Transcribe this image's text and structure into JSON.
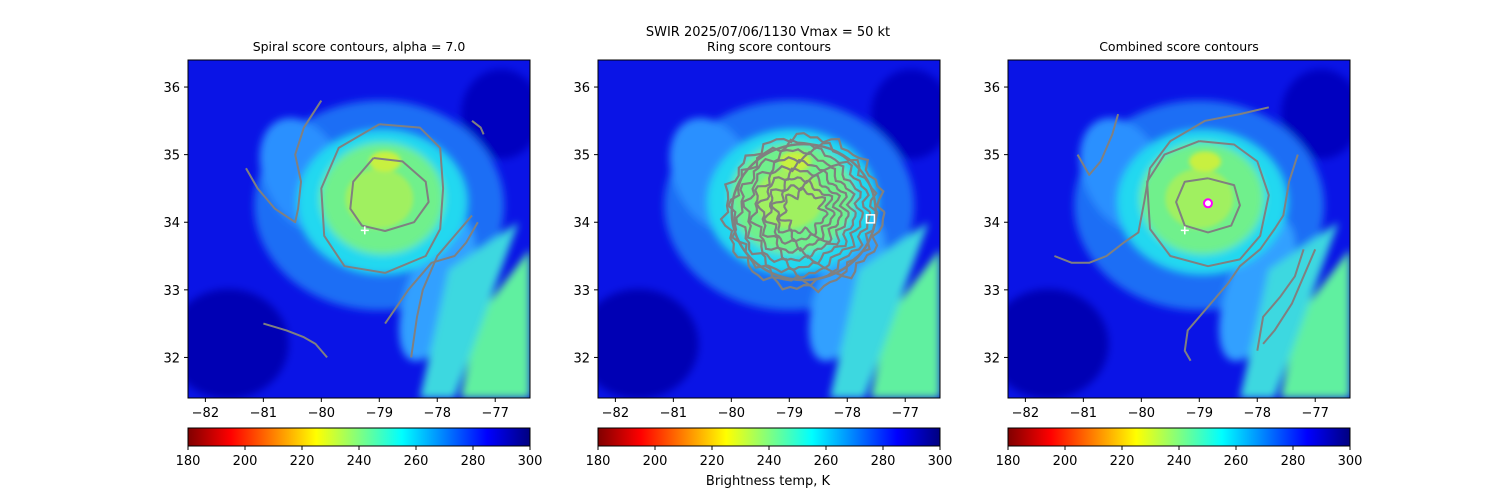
{
  "suptitle": {
    "line1": "SWIR  2025/07/06/1130    Vmax = 50 kt",
    "colorbar_label": "Brightness temp, K"
  },
  "colors": {
    "contour": "#808080",
    "marker_plus": "#ffffff",
    "marker_square": "#ffffff",
    "marker_circle_edge": "#ff00ff",
    "marker_circle_face": "#ffffff"
  },
  "colormap": {
    "name": "jet_r",
    "stops": [
      "#800000",
      "#ff0000",
      "#ff8000",
      "#ffff00",
      "#80ff80",
      "#00ffff",
      "#0080ff",
      "#0000ff",
      "#000080"
    ]
  },
  "chart_data": [
    {
      "type": "heatmap",
      "title": "Spiral score contours, alpha =  7.0",
      "xlabel": "",
      "ylabel": "",
      "xlim": [
        -82.3,
        -76.4
      ],
      "ylim": [
        31.4,
        36.4
      ],
      "xticks": [
        -82,
        -81,
        -80,
        -79,
        -78,
        -77
      ],
      "yticks": [
        32,
        33,
        34,
        35,
        36
      ],
      "colorbar": {
        "min": 180,
        "max": 300,
        "ticks": [
          180,
          200,
          220,
          240,
          260,
          280,
          300
        ]
      },
      "markers": [
        {
          "shape": "plus",
          "x": -79.25,
          "y": 33.88
        }
      ],
      "contours": [
        [
          [
            -79.1,
            34.95
          ],
          [
            -78.6,
            34.9
          ],
          [
            -78.2,
            34.6
          ],
          [
            -78.15,
            34.3
          ],
          [
            -78.4,
            34.0
          ],
          [
            -78.9,
            33.87
          ],
          [
            -79.3,
            33.95
          ],
          [
            -79.5,
            34.2
          ],
          [
            -79.45,
            34.6
          ],
          [
            -79.1,
            34.95
          ]
        ],
        [
          [
            -79.0,
            35.45
          ],
          [
            -78.3,
            35.4
          ],
          [
            -77.95,
            35.1
          ],
          [
            -77.9,
            34.5
          ],
          [
            -77.95,
            33.9
          ],
          [
            -78.2,
            33.5
          ],
          [
            -78.9,
            33.25
          ],
          [
            -79.6,
            33.35
          ],
          [
            -79.95,
            33.8
          ],
          [
            -80.0,
            34.5
          ],
          [
            -79.7,
            35.1
          ],
          [
            -79.0,
            35.45
          ]
        ],
        [
          [
            -81.3,
            34.8
          ],
          [
            -81.1,
            34.5
          ],
          [
            -80.8,
            34.2
          ],
          [
            -80.45,
            34.0
          ],
          [
            -80.4,
            34.2
          ],
          [
            -80.35,
            34.6
          ],
          [
            -80.45,
            35.0
          ],
          [
            -80.3,
            35.4
          ],
          [
            -80.0,
            35.8
          ]
        ],
        [
          [
            -77.4,
            34.1
          ],
          [
            -77.6,
            33.9
          ],
          [
            -77.8,
            33.7
          ],
          [
            -78.0,
            33.5
          ],
          [
            -78.25,
            33.0
          ],
          [
            -78.35,
            32.6
          ],
          [
            -78.45,
            32.0
          ]
        ],
        [
          [
            -77.3,
            34.0
          ],
          [
            -77.5,
            33.7
          ],
          [
            -77.7,
            33.5
          ],
          [
            -78.1,
            33.4
          ],
          [
            -78.5,
            33.0
          ],
          [
            -78.9,
            32.5
          ]
        ],
        [
          [
            -81.0,
            32.5
          ],
          [
            -80.6,
            32.4
          ],
          [
            -80.3,
            32.3
          ],
          [
            -80.1,
            32.2
          ],
          [
            -79.9,
            32.0
          ]
        ],
        [
          [
            -77.4,
            35.5
          ],
          [
            -77.25,
            35.4
          ],
          [
            -77.2,
            35.3
          ]
        ]
      ]
    },
    {
      "type": "heatmap",
      "title": "Ring score contours",
      "xlabel": "",
      "ylabel": "",
      "xlim": [
        -82.3,
        -76.4
      ],
      "ylim": [
        31.4,
        36.4
      ],
      "xticks": [
        -82,
        -81,
        -80,
        -79,
        -78,
        -77
      ],
      "yticks": [
        32,
        33,
        34,
        35,
        36
      ],
      "colorbar": {
        "min": 180,
        "max": 300,
        "ticks": [
          180,
          200,
          220,
          240,
          260,
          280,
          300
        ]
      },
      "markers": [
        {
          "shape": "square",
          "x": -77.6,
          "y": 34.05
        }
      ],
      "contours": []
    },
    {
      "type": "heatmap",
      "title": "Combined score contours",
      "xlabel": "",
      "ylabel": "",
      "xlim": [
        -82.3,
        -76.4
      ],
      "ylim": [
        31.4,
        36.4
      ],
      "xticks": [
        -82,
        -81,
        -80,
        -79,
        -78,
        -77
      ],
      "yticks": [
        32,
        33,
        34,
        35,
        36
      ],
      "colorbar": {
        "min": 180,
        "max": 300,
        "ticks": [
          180,
          200,
          220,
          240,
          260,
          280,
          300
        ]
      },
      "markers": [
        {
          "shape": "plus",
          "x": -79.25,
          "y": 33.88
        },
        {
          "shape": "circle",
          "x": -78.85,
          "y": 34.28
        }
      ],
      "contours": [
        [
          [
            -78.85,
            34.65
          ],
          [
            -78.4,
            34.55
          ],
          [
            -78.3,
            34.25
          ],
          [
            -78.45,
            33.95
          ],
          [
            -78.85,
            33.85
          ],
          [
            -79.25,
            33.95
          ],
          [
            -79.4,
            34.3
          ],
          [
            -79.25,
            34.6
          ],
          [
            -78.85,
            34.65
          ]
        ],
        [
          [
            -79.0,
            35.2
          ],
          [
            -78.4,
            35.15
          ],
          [
            -78.0,
            34.9
          ],
          [
            -77.8,
            34.4
          ],
          [
            -77.95,
            33.8
          ],
          [
            -78.3,
            33.45
          ],
          [
            -78.85,
            33.35
          ],
          [
            -79.5,
            33.5
          ],
          [
            -79.85,
            33.9
          ],
          [
            -79.9,
            34.6
          ],
          [
            -79.6,
            35.0
          ],
          [
            -79.0,
            35.2
          ]
        ],
        [
          [
            -77.3,
            35.0
          ],
          [
            -77.45,
            34.6
          ],
          [
            -77.55,
            34.1
          ],
          [
            -77.7,
            33.9
          ],
          [
            -77.95,
            33.6
          ],
          [
            -78.3,
            33.35
          ],
          [
            -78.5,
            33.1
          ],
          [
            -78.9,
            32.7
          ],
          [
            -79.2,
            32.4
          ],
          [
            -79.25,
            32.1
          ],
          [
            -79.15,
            31.95
          ]
        ],
        [
          [
            -81.5,
            33.5
          ],
          [
            -81.2,
            33.4
          ],
          [
            -80.9,
            33.4
          ],
          [
            -80.6,
            33.5
          ],
          [
            -80.3,
            33.7
          ],
          [
            -80.05,
            33.85
          ],
          [
            -79.95,
            34.3
          ],
          [
            -79.85,
            34.8
          ],
          [
            -79.5,
            35.2
          ],
          [
            -78.9,
            35.5
          ],
          [
            -78.3,
            35.6
          ],
          [
            -77.8,
            35.7
          ]
        ],
        [
          [
            -81.1,
            35.0
          ],
          [
            -80.9,
            34.7
          ],
          [
            -80.7,
            34.9
          ],
          [
            -80.5,
            35.3
          ],
          [
            -80.4,
            35.6
          ]
        ],
        [
          [
            -77.2,
            33.6
          ],
          [
            -77.35,
            33.2
          ],
          [
            -77.6,
            32.9
          ],
          [
            -77.9,
            32.6
          ],
          [
            -78.0,
            32.1
          ]
        ],
        [
          [
            -77.0,
            33.6
          ],
          [
            -77.2,
            33.2
          ],
          [
            -77.4,
            32.8
          ],
          [
            -77.7,
            32.4
          ],
          [
            -77.9,
            32.2
          ]
        ]
      ]
    }
  ]
}
